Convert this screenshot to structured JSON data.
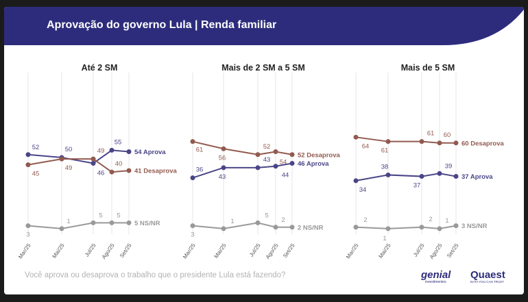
{
  "header": {
    "title": "Aprovação do governo Lula | Renda familiar"
  },
  "footer": {
    "question": "Você aprova ou desaprova o trabalho que o presidente Lula está fazendo?",
    "logo_genial": "genial",
    "logo_genial_sub": "investimentos",
    "logo_quaest": "Quaest",
    "logo_quaest_sub": "DATA YOU CAN TRUST"
  },
  "colors": {
    "banner": "#2d2c7c",
    "aprova": "#4a4587",
    "desaprova": "#925a4f",
    "nsnr": "#999999",
    "gridline": "#e6e6e6"
  },
  "chart_data": [
    {
      "type": "line",
      "title": "Até 2 SM",
      "x": [
        "Mar/25",
        "Mai/25",
        "Jul/25",
        "Ago/25",
        "Set/25"
      ],
      "series": [
        {
          "name": "Aprova",
          "values": [
            52,
            50,
            46,
            55,
            54
          ],
          "end_label": "54 Aprova"
        },
        {
          "name": "Desaprova",
          "values": [
            45,
            49,
            49,
            40,
            41
          ],
          "end_label": "41 Desaprova"
        },
        {
          "name": "NS/NR",
          "values": [
            3,
            1,
            5,
            5,
            5
          ],
          "end_label": "5 NS/NR"
        }
      ]
    },
    {
      "type": "line",
      "title": "Mais de 2 SM a 5 SM",
      "x": [
        "Mar/25",
        "Mai/25",
        "Jul/25",
        "Ago/25",
        "Set/25"
      ],
      "series": [
        {
          "name": "Desaprova",
          "values": [
            61,
            56,
            52,
            54,
            52
          ],
          "end_label": "52 Desaprova"
        },
        {
          "name": "Aprova",
          "values": [
            36,
            43,
            43,
            44,
            46
          ],
          "end_label": "46 Aprova"
        },
        {
          "name": "NS/NR",
          "values": [
            3,
            1,
            5,
            2,
            2
          ],
          "end_label": "2 NS/NR"
        }
      ]
    },
    {
      "type": "line",
      "title": "Mais de 5 SM",
      "x": [
        "Mar/25",
        "Mai/25",
        "Jul/25",
        "Ago/25",
        "Set/25"
      ],
      "series": [
        {
          "name": "Desaprova",
          "values": [
            64,
            61,
            61,
            60,
            60
          ],
          "end_label": "60 Desaprova"
        },
        {
          "name": "Aprova",
          "values": [
            34,
            38,
            37,
            39,
            37
          ],
          "end_label": "37 Aprova"
        },
        {
          "name": "NS/NR",
          "values": [
            2,
            1,
            2,
            1,
            3
          ],
          "end_label": "3 NS/NR"
        }
      ]
    }
  ]
}
